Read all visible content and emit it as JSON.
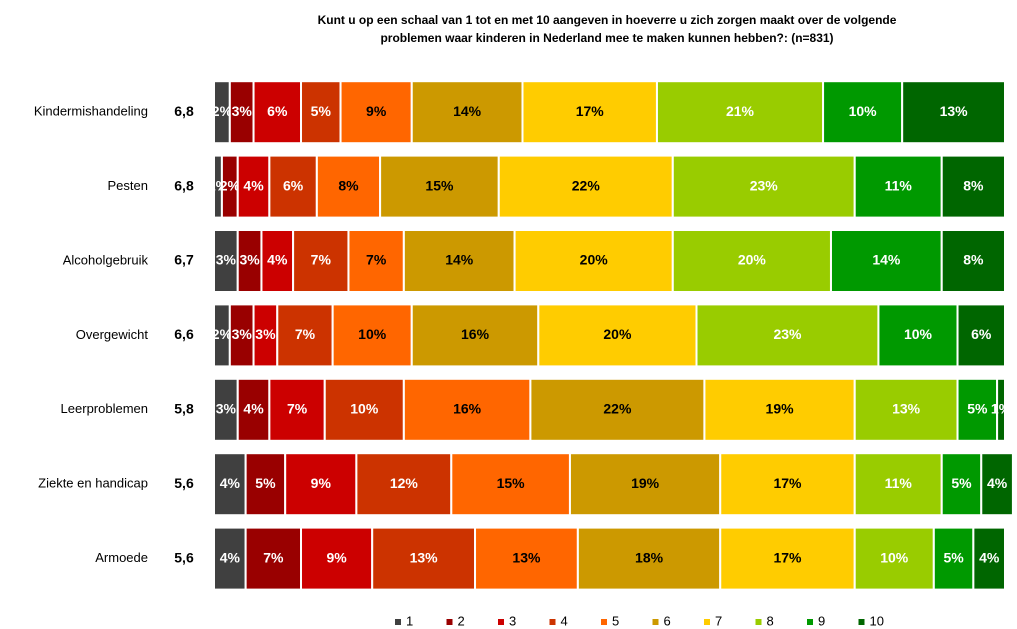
{
  "chart_data": {
    "type": "stacked-barh",
    "title": [
      "Kunt u op een schaal van 1 tot en met 10 aangeven in hoeverre u zich zorgen maakt over de volgende",
      "problemen waar kinderen in Nederland mee te maken kunnen hebben?: (n=831)"
    ],
    "categories": [
      "Kindermishandeling",
      "Pesten",
      "Alcoholgebruik",
      "Overgewicht",
      "Leerproblemen",
      "Ziekte en handicap",
      "Armoede"
    ],
    "scores": [
      6.8,
      6.8,
      6.7,
      6.6,
      5.8,
      5.6,
      5.6
    ],
    "score_labels": [
      "6,8",
      "6,8",
      "6,7",
      "6,6",
      "5,8",
      "5,6",
      "5,6"
    ],
    "xlim": [
      0,
      100
    ],
    "series": [
      {
        "name": "1",
        "color": "#404040",
        "label_color": "#ffffff",
        "values": [
          2,
          1,
          3,
          2,
          3,
          4,
          4
        ],
        "value_labels": [
          "2%",
          "1%",
          "3%",
          "2%",
          "3%",
          "4%",
          "4%"
        ]
      },
      {
        "name": "2",
        "color": "#990000",
        "label_color": "#ffffff",
        "values": [
          3,
          2,
          3,
          3,
          4,
          5,
          7
        ],
        "value_labels": [
          "3%",
          "2%",
          "3%",
          "3%",
          "4%",
          "5%",
          "7%"
        ]
      },
      {
        "name": "3",
        "color": "#cc0000",
        "label_color": "#ffffff",
        "values": [
          6,
          4,
          4,
          3,
          7,
          9,
          9
        ],
        "value_labels": [
          "6%",
          "4%",
          "4%",
          "3%",
          "7%",
          "9%",
          "9%"
        ]
      },
      {
        "name": "4",
        "color": "#cc3300",
        "label_color": "#ffffff",
        "values": [
          5,
          6,
          7,
          7,
          10,
          12,
          13
        ],
        "value_labels": [
          "5%",
          "6%",
          "7%",
          "7%",
          "10%",
          "12%",
          "13%"
        ]
      },
      {
        "name": "5",
        "color": "#ff6600",
        "label_color": "#000000",
        "values": [
          9,
          8,
          7,
          10,
          16,
          15,
          13
        ],
        "value_labels": [
          "9%",
          "8%",
          "7%",
          "10%",
          "16%",
          "15%",
          "13%"
        ]
      },
      {
        "name": "6",
        "color": "#cc9900",
        "label_color": "#000000",
        "values": [
          14,
          15,
          14,
          16,
          22,
          19,
          18
        ],
        "value_labels": [
          "14%",
          "15%",
          "14%",
          "16%",
          "22%",
          "19%",
          "18%"
        ]
      },
      {
        "name": "7",
        "color": "#ffcc00",
        "label_color": "#000000",
        "values": [
          17,
          22,
          20,
          20,
          19,
          17,
          17
        ],
        "value_labels": [
          "17%",
          "22%",
          "20%",
          "20%",
          "19%",
          "17%",
          "17%"
        ]
      },
      {
        "name": "8",
        "color": "#99cc00",
        "label_color": "#ffffff",
        "values": [
          21,
          23,
          20,
          23,
          13,
          11,
          10
        ],
        "value_labels": [
          "21%",
          "23%",
          "20%",
          "23%",
          "13%",
          "11%",
          "10%"
        ]
      },
      {
        "name": "9",
        "color": "#009900",
        "label_color": "#ffffff",
        "values": [
          10,
          11,
          14,
          10,
          5,
          5,
          5
        ],
        "value_labels": [
          "10%",
          "11%",
          "14%",
          "10%",
          "5%",
          "5%",
          "5%"
        ]
      },
      {
        "name": "10",
        "color": "#006600",
        "label_color": "#ffffff",
        "values": [
          13,
          8,
          8,
          6,
          1,
          4,
          4
        ],
        "value_labels": [
          "13%",
          "8%",
          "8%",
          "6%",
          "1%",
          "4%",
          "4%"
        ]
      }
    ]
  }
}
